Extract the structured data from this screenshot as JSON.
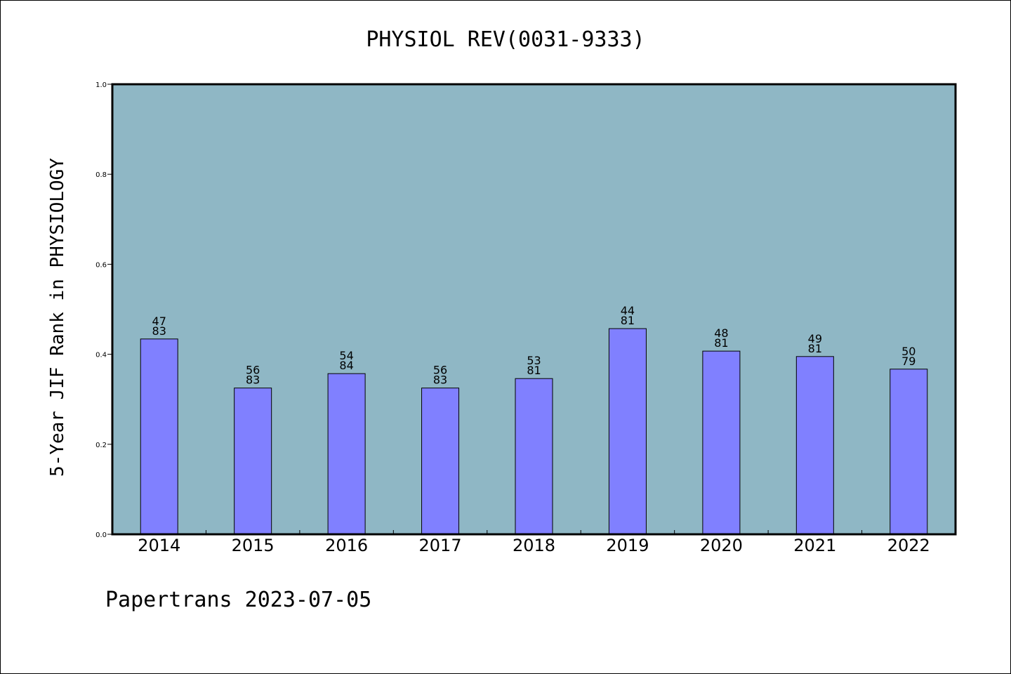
{
  "chart_data": {
    "type": "bar",
    "title": "PHYSIOL REV(0031-9333)",
    "xlabel": "",
    "ylabel": "5-Year JIF Rank in PHYSIOLOGY",
    "categories": [
      "2014",
      "2015",
      "2016",
      "2017",
      "2018",
      "2019",
      "2020",
      "2021",
      "2022"
    ],
    "values": [
      0.434,
      0.325,
      0.357,
      0.325,
      0.346,
      0.457,
      0.407,
      0.395,
      0.367
    ],
    "rank_labels": [
      {
        "rank": "47",
        "total": "83"
      },
      {
        "rank": "56",
        "total": "83"
      },
      {
        "rank": "54",
        "total": "84"
      },
      {
        "rank": "56",
        "total": "83"
      },
      {
        "rank": "53",
        "total": "81"
      },
      {
        "rank": "44",
        "total": "81"
      },
      {
        "rank": "48",
        "total": "81"
      },
      {
        "rank": "49",
        "total": "81"
      },
      {
        "rank": "50",
        "total": "79"
      }
    ],
    "ylim": [
      0.0,
      1.0
    ],
    "yticks": [
      "0.0",
      "0.2",
      "0.4",
      "0.6",
      "0.8",
      "1.0"
    ],
    "grid": false,
    "legend": "none",
    "colors": {
      "plot_background": "#8fb7c5",
      "bar_fill": "#8080ff",
      "bar_stroke": "#000000",
      "frame": "#000000"
    }
  },
  "footer": {
    "text": "Papertrans 2023-07-05"
  }
}
